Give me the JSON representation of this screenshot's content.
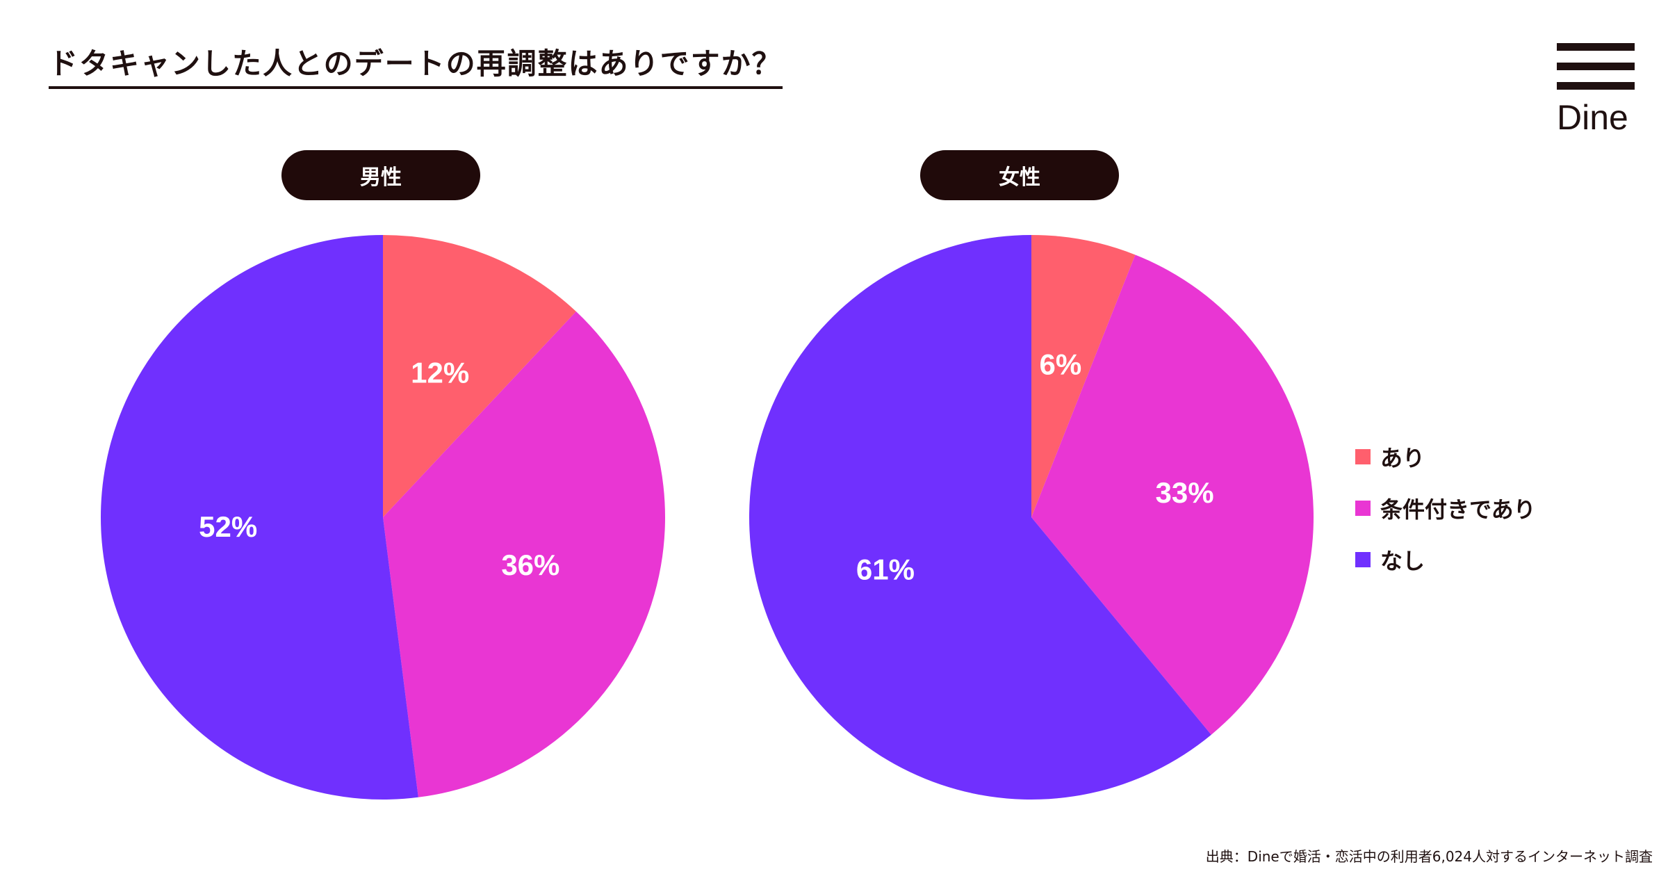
{
  "title": "ドタキャンした人とのデートの再調整はありですか？",
  "logo": {
    "text": "Dine"
  },
  "legend": [
    {
      "label": "あり",
      "color": "#ff5f6d"
    },
    {
      "label": "条件付きであり",
      "color": "#e936d3"
    },
    {
      "label": "なし",
      "color": "#7030fe"
    }
  ],
  "source": "出典：Dineで婚活・恋活中の利用者6,024人対するインターネット調査",
  "chart_data": [
    {
      "type": "pie",
      "title": "男性",
      "categories": [
        "あり",
        "条件付きであり",
        "なし"
      ],
      "values": [
        12,
        36,
        52
      ],
      "value_labels": [
        "12%",
        "36%",
        "52%"
      ]
    },
    {
      "type": "pie",
      "title": "女性",
      "categories": [
        "あり",
        "条件付きであり",
        "なし"
      ],
      "values": [
        6,
        33,
        61
      ],
      "value_labels": [
        "6%",
        "33%",
        "61%"
      ]
    }
  ]
}
